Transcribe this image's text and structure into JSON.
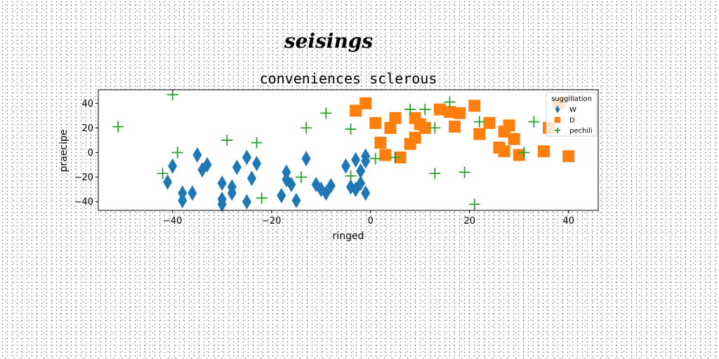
{
  "chart_data": {
    "type": "scatter",
    "suptitle": "seisings",
    "title": "conveniences sclerous",
    "xlabel": "ringed",
    "ylabel": "praecipe",
    "xlim": [
      -55,
      46
    ],
    "ylim": [
      -47,
      51
    ],
    "xticks": [
      -40,
      -20,
      0,
      20,
      40
    ],
    "yticks": [
      -40,
      -20,
      0,
      20,
      40
    ],
    "grid": false,
    "legend": {
      "title": "suggillation",
      "placement": "top-right"
    },
    "series": [
      {
        "name": "W",
        "marker": "diamond",
        "color": "#1f77b4",
        "points": [
          [
            -40,
            -11
          ],
          [
            -41,
            -24
          ],
          [
            -38,
            -33
          ],
          [
            -36,
            -33
          ],
          [
            -38,
            -39
          ],
          [
            -35,
            -2
          ],
          [
            -34,
            -14
          ],
          [
            -33,
            -10
          ],
          [
            -30,
            -25
          ],
          [
            -30,
            -38
          ],
          [
            -30,
            -42
          ],
          [
            -28,
            -28
          ],
          [
            -28,
            -33
          ],
          [
            -27,
            -12
          ],
          [
            -25,
            -4
          ],
          [
            -25,
            -40
          ],
          [
            -24,
            -21
          ],
          [
            -23,
            -9
          ],
          [
            -18,
            -35
          ],
          [
            -17,
            -16
          ],
          [
            -17,
            -22
          ],
          [
            -16,
            -26
          ],
          [
            -15,
            -39
          ],
          [
            -13,
            -5
          ],
          [
            -11,
            -26
          ],
          [
            -10,
            -30
          ],
          [
            -9,
            -33
          ],
          [
            -8,
            -27
          ],
          [
            -5,
            -11
          ],
          [
            -4,
            -28
          ],
          [
            -3,
            -6
          ],
          [
            -2,
            -25
          ],
          [
            -3,
            -30
          ],
          [
            -1,
            -33
          ],
          [
            -2,
            -15
          ],
          [
            -1,
            -7
          ],
          [
            -1,
            -3
          ]
        ]
      },
      {
        "name": "D",
        "marker": "square",
        "color": "#ff7f0e",
        "points": [
          [
            -3,
            34
          ],
          [
            -1,
            40
          ],
          [
            1,
            24
          ],
          [
            2,
            8
          ],
          [
            3,
            -2
          ],
          [
            4,
            20
          ],
          [
            5,
            28
          ],
          [
            6,
            -4
          ],
          [
            8,
            7
          ],
          [
            9,
            12
          ],
          [
            9,
            28
          ],
          [
            10,
            23
          ],
          [
            11,
            20
          ],
          [
            14,
            35
          ],
          [
            16,
            33
          ],
          [
            17,
            21
          ],
          [
            18,
            32
          ],
          [
            21,
            38
          ],
          [
            22,
            15
          ],
          [
            24,
            24
          ],
          [
            26,
            4
          ],
          [
            27,
            1
          ],
          [
            27,
            17
          ],
          [
            28,
            22
          ],
          [
            29,
            11
          ],
          [
            30,
            -2
          ],
          [
            35,
            1
          ],
          [
            36,
            20
          ],
          [
            38,
            40
          ],
          [
            40,
            -3
          ]
        ]
      },
      {
        "name": "pechili",
        "marker": "plus",
        "color": "#2ca02c",
        "points": [
          [
            -51,
            21
          ],
          [
            -42,
            -17
          ],
          [
            -40,
            47
          ],
          [
            -39,
            0
          ],
          [
            -29,
            10
          ],
          [
            -23,
            8
          ],
          [
            -22,
            -37
          ],
          [
            -14,
            -20
          ],
          [
            -13,
            20
          ],
          [
            -9,
            32
          ],
          [
            -4,
            19
          ],
          [
            -4,
            -19
          ],
          [
            1,
            -5
          ],
          [
            5,
            -4
          ],
          [
            8,
            35
          ],
          [
            11,
            35
          ],
          [
            13,
            20
          ],
          [
            13,
            -17
          ],
          [
            16,
            41
          ],
          [
            19,
            -16
          ],
          [
            21,
            -42
          ],
          [
            22,
            25
          ],
          [
            31,
            0
          ],
          [
            33,
            25
          ]
        ]
      }
    ]
  }
}
